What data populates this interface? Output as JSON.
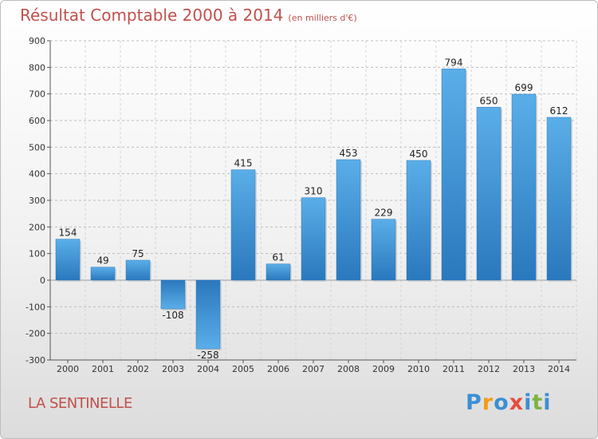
{
  "header": {
    "title": "Résultat Comptable 2000 à 2014",
    "unit": "(en milliers d'€)"
  },
  "footer": {
    "commune": "LA SENTINELLE",
    "logo": [
      "P",
      "r",
      "o",
      "x",
      "i",
      "t",
      "i"
    ],
    "logo_colors": [
      "#3b8fd4",
      "#f39c12",
      "#3b8fd4",
      "#e74c3c",
      "#3b8fd4",
      "#7cb342",
      "#3b8fd4"
    ]
  },
  "chart_data": {
    "type": "bar",
    "categories": [
      "2000",
      "2001",
      "2002",
      "2003",
      "2004",
      "2005",
      "2006",
      "2007",
      "2008",
      "2009",
      "2010",
      "2011",
      "2012",
      "2013",
      "2014"
    ],
    "values": [
      154,
      49,
      75,
      -108,
      -258,
      415,
      61,
      310,
      453,
      229,
      450,
      794,
      650,
      699,
      612
    ],
    "ylim": [
      -300,
      900
    ],
    "yticks": [
      -300,
      -200,
      -100,
      0,
      100,
      200,
      300,
      400,
      500,
      600,
      700,
      800,
      900
    ],
    "grid": true,
    "bar_color": "#4a9fe0",
    "bar_color_dark": "#2a78bd",
    "xlabel": "",
    "ylabel": ""
  }
}
